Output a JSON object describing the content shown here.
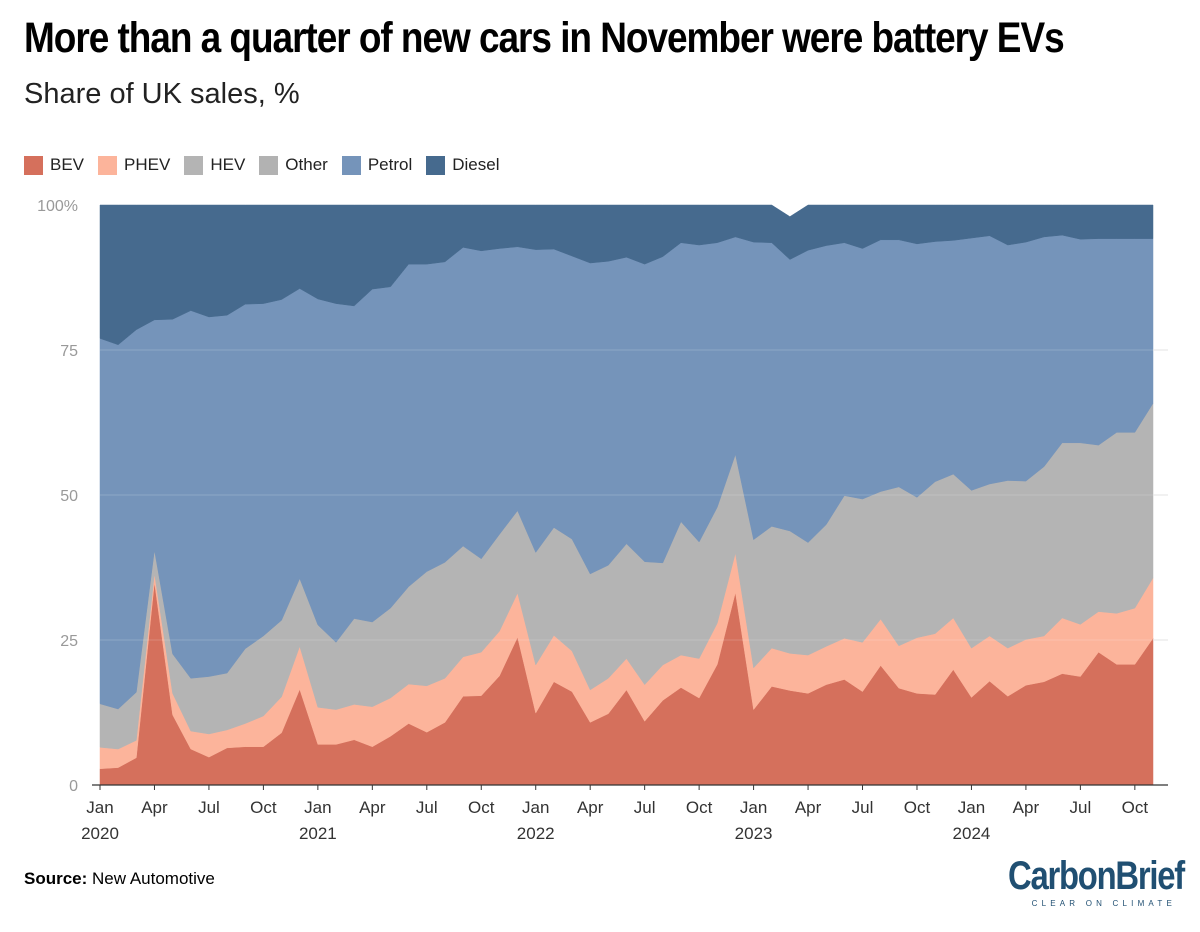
{
  "title": "More than a quarter of new cars in November were battery EVs",
  "subtitle": "Share of UK sales, %",
  "source_label": "Source:",
  "source_text": "New Automotive",
  "logo": {
    "name": "CarbonBrief",
    "tagline": "CLEAR ON CLIMATE",
    "color": "#204f72"
  },
  "chart_data": {
    "type": "area",
    "stacked": true,
    "ylim": [
      0,
      100
    ],
    "yticks": [
      0,
      25,
      50,
      75,
      100
    ],
    "ytick_labels": [
      "0",
      "25",
      "50",
      "75",
      "100%"
    ],
    "grid": true,
    "legend_position": "top-left",
    "x_labels": [
      {
        "i": 0,
        "month": "Jan",
        "year": "2020"
      },
      {
        "i": 3,
        "month": "Apr",
        "year": ""
      },
      {
        "i": 6,
        "month": "Jul",
        "year": ""
      },
      {
        "i": 9,
        "month": "Oct",
        "year": ""
      },
      {
        "i": 12,
        "month": "Jan",
        "year": "2021"
      },
      {
        "i": 15,
        "month": "Apr",
        "year": ""
      },
      {
        "i": 18,
        "month": "Jul",
        "year": ""
      },
      {
        "i": 21,
        "month": "Oct",
        "year": ""
      },
      {
        "i": 24,
        "month": "Jan",
        "year": "2022"
      },
      {
        "i": 27,
        "month": "Apr",
        "year": ""
      },
      {
        "i": 30,
        "month": "Jul",
        "year": ""
      },
      {
        "i": 33,
        "month": "Oct",
        "year": ""
      },
      {
        "i": 36,
        "month": "Jan",
        "year": "2023"
      },
      {
        "i": 39,
        "month": "Apr",
        "year": ""
      },
      {
        "i": 42,
        "month": "Jul",
        "year": ""
      },
      {
        "i": 45,
        "month": "Oct",
        "year": ""
      },
      {
        "i": 48,
        "month": "Jan",
        "year": "2024"
      },
      {
        "i": 51,
        "month": "Apr",
        "year": ""
      },
      {
        "i": 54,
        "month": "Jul",
        "year": ""
      },
      {
        "i": 57,
        "month": "Oct",
        "year": ""
      }
    ],
    "series": [
      {
        "name": "BEV",
        "color": "#d5705c",
        "values": [
          2.8,
          3.0,
          4.7,
          35.0,
          12.1,
          6.2,
          4.8,
          6.4,
          6.6,
          6.6,
          9.0,
          16.5,
          7.0,
          7.0,
          7.8,
          6.6,
          8.4,
          10.6,
          9.1,
          10.8,
          15.3,
          15.4,
          18.8,
          25.5,
          12.4,
          17.8,
          16.1,
          10.8,
          12.3,
          16.4,
          11.0,
          14.6,
          16.8,
          15.0,
          20.8,
          33.2,
          13.0,
          17.0,
          16.3,
          15.8,
          17.3,
          18.2,
          16.1,
          20.6,
          16.7,
          15.8,
          15.6,
          19.9,
          15.1,
          17.9,
          15.3,
          17.2,
          17.8,
          19.2,
          18.7,
          22.9,
          20.8,
          20.8,
          25.3
        ]
      },
      {
        "name": "PHEV",
        "color": "#fcb49b",
        "values": [
          3.7,
          3.2,
          3.0,
          1.5,
          3.7,
          3.1,
          4.0,
          3.1,
          4.0,
          5.3,
          6.2,
          7.4,
          6.4,
          6.0,
          6.1,
          6.9,
          6.6,
          6.8,
          8.0,
          7.6,
          6.8,
          7.5,
          7.7,
          7.6,
          8.3,
          8.0,
          7.0,
          5.6,
          6.1,
          5.4,
          6.3,
          6.1,
          5.6,
          6.8,
          7.1,
          6.8,
          7.2,
          6.6,
          6.4,
          6.6,
          6.6,
          7.1,
          8.5,
          8.0,
          7.3,
          9.6,
          10.5,
          8.9,
          8.5,
          7.8,
          8.3,
          7.9,
          7.9,
          9.6,
          9.0,
          7.0,
          8.8,
          9.7,
          10.4
        ]
      },
      {
        "name": "HEV",
        "color": "#b4b4b4",
        "values": [
          7.5,
          6.9,
          8.3,
          4.0,
          6.8,
          9.1,
          9.9,
          9.8,
          12.9,
          13.8,
          13.2,
          11.7,
          14.2,
          11.6,
          14.8,
          14.6,
          15.5,
          16.8,
          19.7,
          20.0,
          19.1,
          16.1,
          16.7,
          14.2,
          19.4,
          18.6,
          19.3,
          20.0,
          19.5,
          19.8,
          21.2,
          17.6,
          23.0,
          20.1,
          20.0,
          17.0,
          22.1,
          21.0,
          21.1,
          19.4,
          21.0,
          24.6,
          24.7,
          22.0,
          27.4,
          24.2,
          26.2,
          24.8,
          27.2,
          26.2,
          28.9,
          27.3,
          29.2,
          30.2,
          31.3,
          28.7,
          31.2,
          30.3,
          30.1
        ]
      },
      {
        "name": "Other",
        "color": "#b2b2b2",
        "values": [
          0,
          0,
          0,
          0,
          0,
          0,
          0,
          0,
          0,
          0,
          0,
          0,
          0,
          0,
          0,
          0,
          0,
          0,
          0,
          0,
          0,
          0,
          0,
          0,
          0,
          0,
          0,
          0,
          0,
          0,
          0,
          0,
          0,
          0,
          0,
          0,
          0,
          0,
          0,
          0,
          0,
          0,
          0,
          0,
          0,
          0,
          0,
          0,
          0,
          0,
          0,
          0,
          0,
          0,
          0,
          0,
          0,
          0,
          0
        ]
      },
      {
        "name": "Petrol",
        "color": "#7594ba",
        "values": [
          63.0,
          62.8,
          62.5,
          39.7,
          57.7,
          63.4,
          62.0,
          61.7,
          59.4,
          57.3,
          55.3,
          50.0,
          56.2,
          58.4,
          53.9,
          57.4,
          55.4,
          55.6,
          53.0,
          51.8,
          51.5,
          53.1,
          49.3,
          45.5,
          52.2,
          48.0,
          48.8,
          53.6,
          52.4,
          49.4,
          51.3,
          52.8,
          48.1,
          51.2,
          45.6,
          37.5,
          51.3,
          48.9,
          46.8,
          50.4,
          48.1,
          43.6,
          43.2,
          43.4,
          42.6,
          43.7,
          41.4,
          40.3,
          43.5,
          42.8,
          40.6,
          41.2,
          39.6,
          35.8,
          35.1,
          35.6,
          33.4,
          33.4,
          28.4
        ]
      },
      {
        "name": "Diesel",
        "color": "#466a8e",
        "values": [
          23.0,
          24.1,
          21.5,
          19.8,
          19.7,
          18.2,
          19.3,
          19.0,
          17.1,
          17.0,
          16.3,
          14.4,
          16.2,
          17.0,
          17.4,
          14.5,
          14.1,
          10.2,
          10.2,
          9.8,
          7.3,
          7.9,
          7.5,
          7.2,
          7.7,
          7.6,
          8.8,
          10.0,
          9.7,
          9.0,
          10.2,
          8.9,
          6.5,
          6.9,
          6.5,
          5.5,
          6.4,
          6.5,
          7.4,
          7.8,
          7.0,
          6.5,
          7.5,
          6.0,
          6.0,
          6.7,
          6.3,
          6.1,
          5.7,
          5.3,
          6.9,
          6.4,
          5.5,
          5.2,
          5.9,
          5.8,
          5.8,
          5.8,
          5.8
        ]
      }
    ]
  }
}
